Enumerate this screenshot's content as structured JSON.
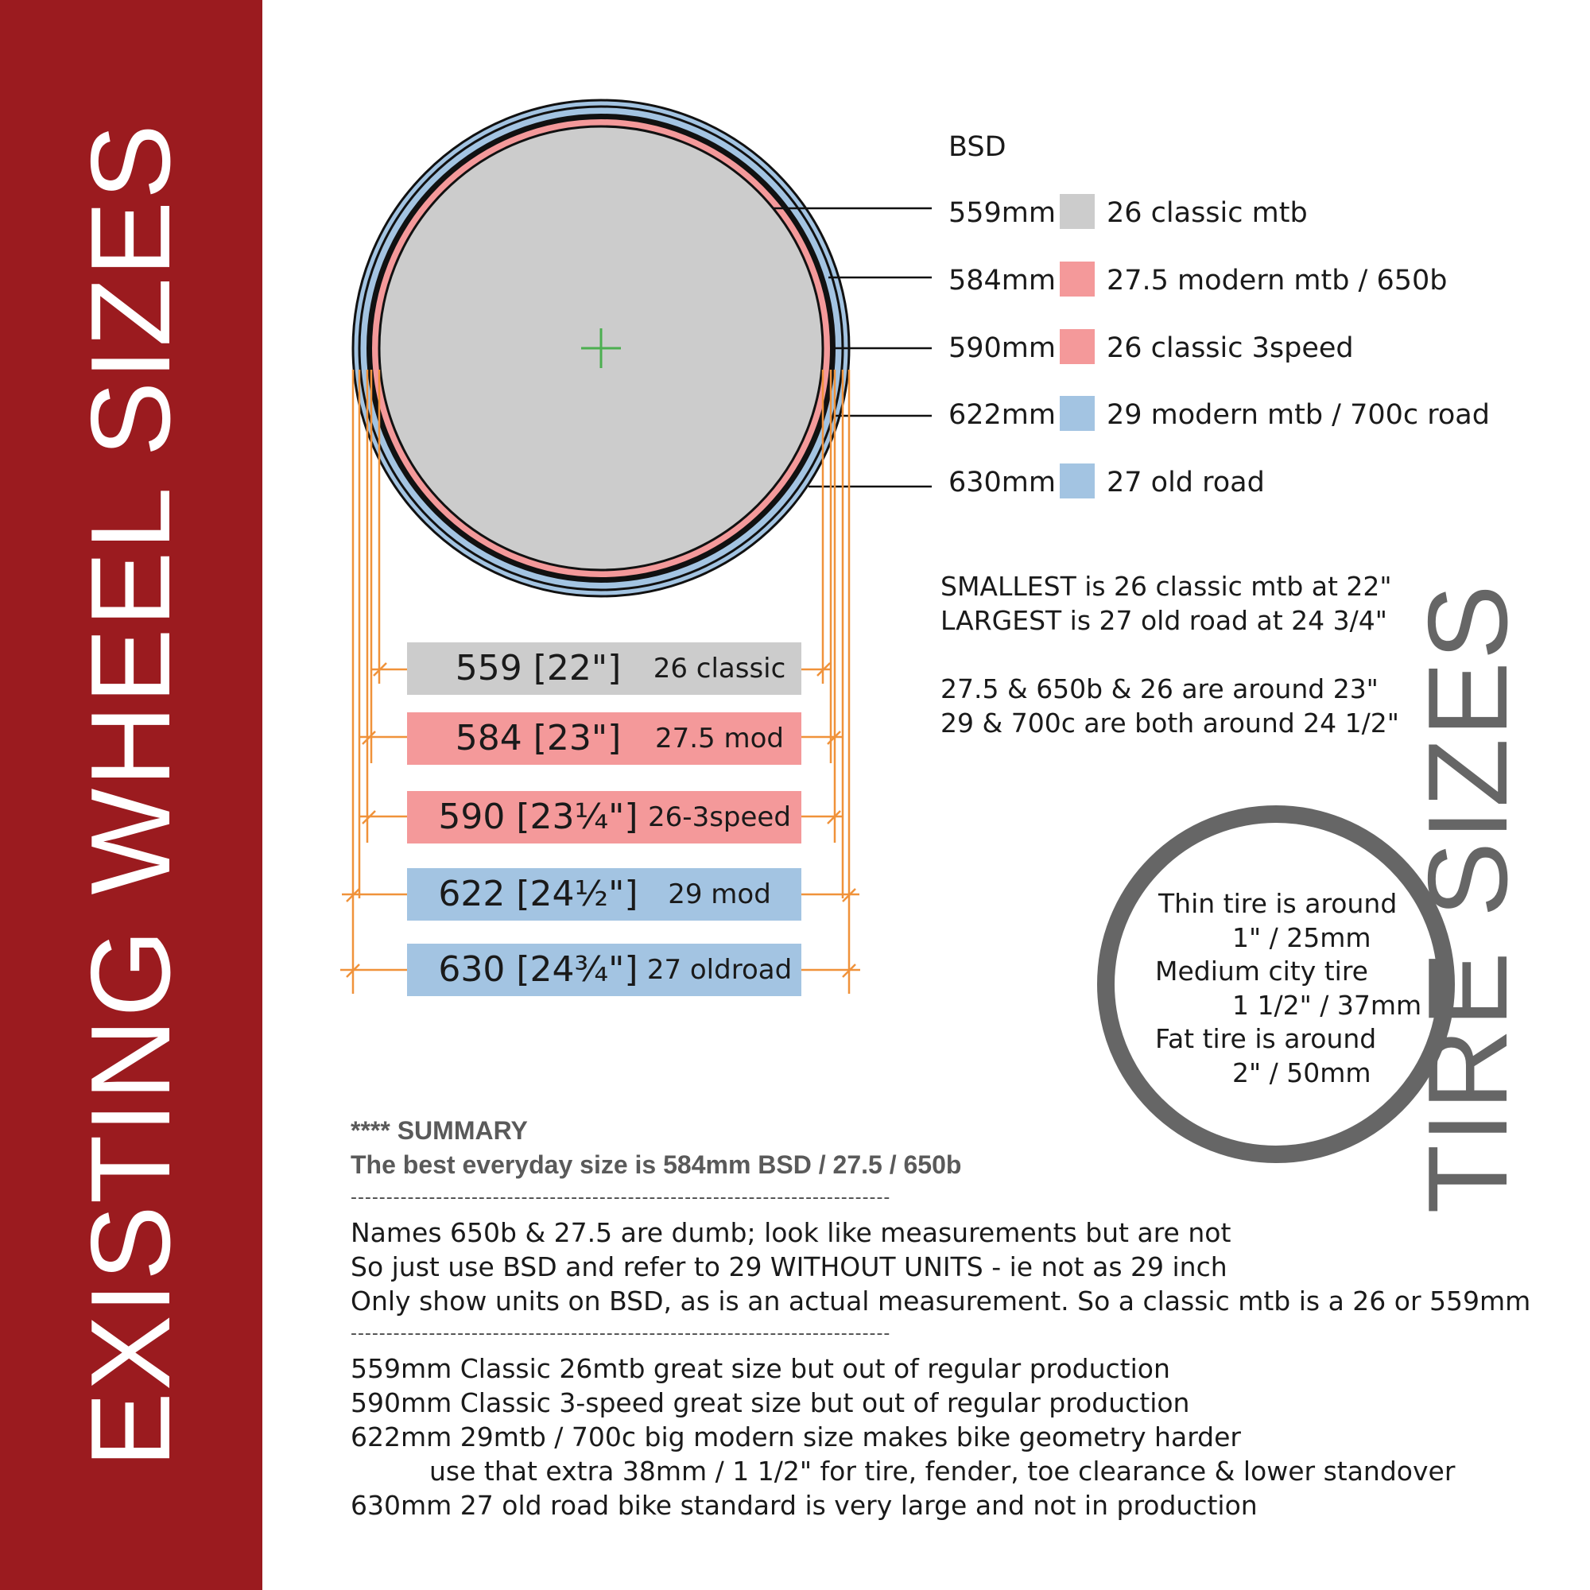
{
  "colors": {
    "sidebar": "#9b1b1f",
    "grey": "#cccccc",
    "pink": "#f4999a",
    "blue": "#a3c4e2",
    "leader": "#f0923a",
    "center_mark": "#4caf50",
    "tire": "#666666"
  },
  "sidebar": {
    "title": "EXISTING WHEEL SIZES"
  },
  "tire_panel": {
    "title": "TIRE SIZES",
    "lines": [
      "Thin tire is around",
      "1\" / 25mm",
      "Medium city tire",
      "1 1/2\" / 37mm",
      "Fat tire is around",
      "2\" / 50mm"
    ]
  },
  "legend": {
    "header": "BSD",
    "rows": [
      {
        "bsd": "559mm",
        "name": "26 classic mtb",
        "color": "grey"
      },
      {
        "bsd": "584mm",
        "name": "27.5 modern mtb  /  650b",
        "color": "pink"
      },
      {
        "bsd": "590mm",
        "name": "26 classic 3speed",
        "color": "pink"
      },
      {
        "bsd": "622mm",
        "name": "29 modern mtb  /  700c  road",
        "color": "blue"
      },
      {
        "bsd": "630mm",
        "name": "27 old road",
        "color": "blue"
      }
    ]
  },
  "bars": [
    {
      "size": "559  [22\"]",
      "name": "26 classic",
      "color": "grey",
      "bsd_mm": 559
    },
    {
      "size": "584  [23\"]",
      "name": "27.5 mod",
      "color": "pink",
      "bsd_mm": 584
    },
    {
      "size": "590  [23¼\"]",
      "name": "26-3speed",
      "color": "pink",
      "bsd_mm": 590
    },
    {
      "size": "622  [24½\"]",
      "name": "29 mod",
      "color": "blue",
      "bsd_mm": 622
    },
    {
      "size": "630  [24¾\"]",
      "name": "27 oldroad",
      "color": "blue",
      "bsd_mm": 630
    }
  ],
  "notes": {
    "line1": "SMALLEST is 26 classic mtb at 22\"",
    "line2": "LARGEST is 27 old road at 24 3/4\"",
    "line3": "27.5 & 650b & 26 are around 23\"",
    "line4": "29 & 700c are both around 24 1/2\""
  },
  "summary": {
    "heading": "****   SUMMARY",
    "best": "The best everyday size is 584mm BSD / 27.5 / 650b",
    "divider": "----------------------------------------------------------------------------",
    "lines_a": [
      "Names 650b & 27.5 are dumb; look like measurements but are not",
      "So just use BSD and refer to 29 WITHOUT UNITS - ie not as 29 inch",
      "Only show units on BSD, as is an actual measurement. So a classic mtb is a 26 or 559mm"
    ],
    "lines_b": [
      "559mm Classic 26mtb great size but out of regular production",
      "590mm Classic 3-speed great size but out of regular production",
      "622mm 29mtb / 700c big modern size makes bike geometry harder",
      "use that extra 38mm / 1 1/2\" for tire, fender, toe clearance & lower standover",
      "630mm 27 old road bike standard is very large and not in production"
    ]
  }
}
